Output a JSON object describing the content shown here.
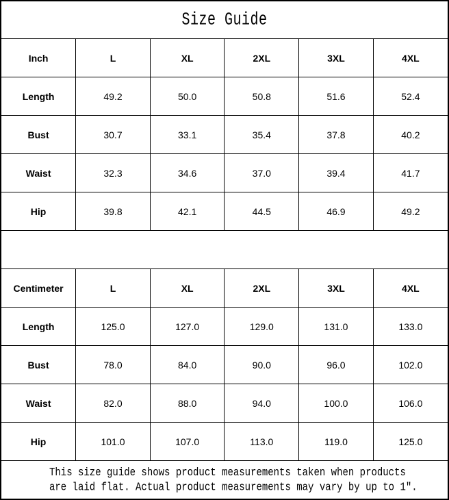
{
  "title": "Size Guide",
  "tables": [
    {
      "unit_label": "Inch",
      "columns": [
        "L",
        "XL",
        "2XL",
        "3XL",
        "4XL"
      ],
      "rows": [
        {
          "label": "Length",
          "values": [
            "49.2",
            "50.0",
            "50.8",
            "51.6",
            "52.4"
          ]
        },
        {
          "label": "Bust",
          "values": [
            "30.7",
            "33.1",
            "35.4",
            "37.8",
            "40.2"
          ]
        },
        {
          "label": "Waist",
          "values": [
            "32.3",
            "34.6",
            "37.0",
            "39.4",
            "41.7"
          ]
        },
        {
          "label": "Hip",
          "values": [
            "39.8",
            "42.1",
            "44.5",
            "46.9",
            "49.2"
          ]
        }
      ]
    },
    {
      "unit_label": "Centimeter",
      "columns": [
        "L",
        "XL",
        "2XL",
        "3XL",
        "4XL"
      ],
      "rows": [
        {
          "label": "Length",
          "values": [
            "125.0",
            "127.0",
            "129.0",
            "131.0",
            "133.0"
          ]
        },
        {
          "label": "Bust",
          "values": [
            "78.0",
            "84.0",
            "90.0",
            "96.0",
            "102.0"
          ]
        },
        {
          "label": "Waist",
          "values": [
            "82.0",
            "88.0",
            "94.0",
            "100.0",
            "106.0"
          ]
        },
        {
          "label": "Hip",
          "values": [
            "101.0",
            "107.0",
            "113.0",
            "119.0",
            "125.0"
          ]
        }
      ]
    }
  ],
  "footnote": {
    "line1": "This size guide shows product measurements taken when products",
    "line2": "are laid flat. Actual product measurements may vary by up to 1″."
  },
  "colors": {
    "border": "#000000",
    "text": "#000000",
    "background": "#ffffff"
  }
}
